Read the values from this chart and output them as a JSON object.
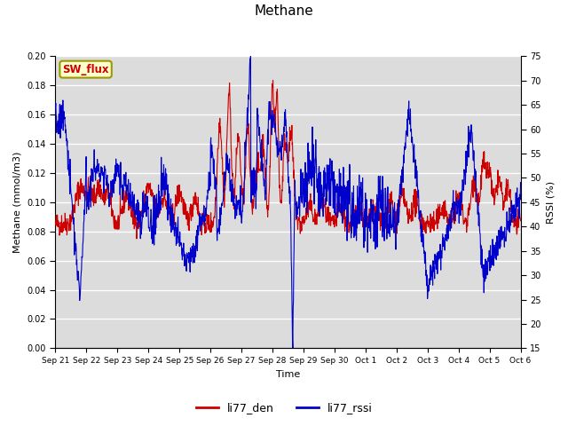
{
  "title": "Methane",
  "ylabel_left": "Methane (mmol/m3)",
  "ylabel_right": "RSSI (%)",
  "xlabel": "Time",
  "ylim_left": [
    0.0,
    0.2
  ],
  "ylim_right": [
    15,
    75
  ],
  "yticks_left": [
    0.0,
    0.02,
    0.04,
    0.06,
    0.08,
    0.1,
    0.12,
    0.14,
    0.16,
    0.18,
    0.2
  ],
  "yticks_right": [
    15,
    20,
    25,
    30,
    35,
    40,
    45,
    50,
    55,
    60,
    65,
    70,
    75
  ],
  "xtick_labels": [
    "Sep 21",
    "Sep 22",
    "Sep 23",
    "Sep 24",
    "Sep 25",
    "Sep 26",
    "Sep 27",
    "Sep 28",
    "Sep 29",
    "Sep 30",
    "Oct 1",
    "Oct 2",
    "Oct 3",
    "Oct 4",
    "Oct 5",
    "Oct 6"
  ],
  "color_den": "#cc0000",
  "color_rssi": "#0000cc",
  "legend_labels": [
    "li77_den",
    "li77_rssi"
  ],
  "tag_text": "SW_flux",
  "tag_bg": "#ffffcc",
  "tag_border": "#999900",
  "tag_text_color": "#cc0000",
  "bg_color": "#dcdcdc",
  "grid_color": "#ffffff"
}
